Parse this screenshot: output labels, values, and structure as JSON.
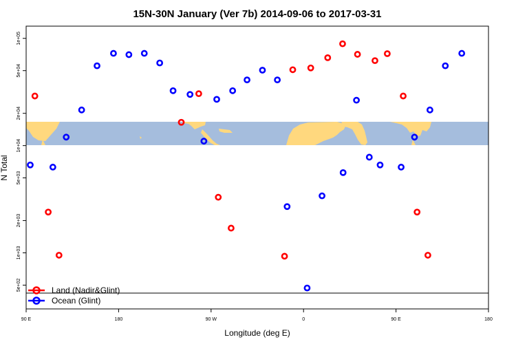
{
  "chart_data": {
    "type": "scatter",
    "title": "15N-30N January (Ver 7b)   2014-09-06 to 2017-03-31",
    "xlabel": "Longitude (deg E)",
    "ylabel": "N Total",
    "x_tick_labels": [
      "90 E",
      "180",
      "90 W",
      "0",
      "90 E",
      "180"
    ],
    "x_tick_values": [
      90,
      180,
      270,
      360,
      450,
      540
    ],
    "xlim": [
      90,
      540
    ],
    "y_scale": "log",
    "ylim": [
      300,
      130000
    ],
    "y_tick_labels": [
      "5e+02",
      "1e+03",
      "2e+03",
      "5e+03",
      "1e+04",
      "2e+04",
      "5e+04",
      "1e+05"
    ],
    "y_tick_values": [
      500,
      1000,
      2000,
      5000,
      10000,
      20000,
      50000,
      100000
    ],
    "map_band_latitudes": "15N-30N",
    "legend_position": "bottom-left",
    "series": [
      {
        "name": "Land (Nadir&Glint)",
        "color": "#ff0000",
        "points": [
          {
            "x": 98.5,
            "y": 29000
          },
          {
            "x": 111.5,
            "y": 2400
          },
          {
            "x": 122.0,
            "y": 950
          },
          {
            "x": 241.0,
            "y": 16500
          },
          {
            "x": 258.0,
            "y": 30500
          },
          {
            "x": 277.0,
            "y": 3300
          },
          {
            "x": 289.5,
            "y": 1700
          },
          {
            "x": 341.5,
            "y": 930
          },
          {
            "x": 349.5,
            "y": 51000
          },
          {
            "x": 367.0,
            "y": 53000
          },
          {
            "x": 383.5,
            "y": 66000
          },
          {
            "x": 398.0,
            "y": 89000
          },
          {
            "x": 412.5,
            "y": 71000
          },
          {
            "x": 429.5,
            "y": 62000
          },
          {
            "x": 441.5,
            "y": 72000
          },
          {
            "x": 457.0,
            "y": 29000
          },
          {
            "x": 470.5,
            "y": 2400
          },
          {
            "x": 481.0,
            "y": 950
          }
        ]
      },
      {
        "name": "Ocean (Glint)",
        "color": "#0000ff",
        "points": [
          {
            "x": 94.0,
            "y": 6600
          },
          {
            "x": 116.0,
            "y": 6300
          },
          {
            "x": 129.0,
            "y": 12000
          },
          {
            "x": 144.0,
            "y": 21500
          },
          {
            "x": 159.0,
            "y": 55500
          },
          {
            "x": 175.0,
            "y": 72500
          },
          {
            "x": 190.0,
            "y": 70500
          },
          {
            "x": 205.0,
            "y": 72500
          },
          {
            "x": 220.0,
            "y": 59000
          },
          {
            "x": 233.0,
            "y": 32500
          },
          {
            "x": 249.5,
            "y": 30000
          },
          {
            "x": 263.0,
            "y": 11000
          },
          {
            "x": 275.5,
            "y": 27000
          },
          {
            "x": 291.0,
            "y": 32500
          },
          {
            "x": 305.0,
            "y": 41000
          },
          {
            "x": 320.0,
            "y": 50500
          },
          {
            "x": 334.5,
            "y": 41000
          },
          {
            "x": 344.0,
            "y": 2700
          },
          {
            "x": 363.5,
            "y": 470
          },
          {
            "x": 378.0,
            "y": 3400
          },
          {
            "x": 398.5,
            "y": 5600
          },
          {
            "x": 411.5,
            "y": 26500
          },
          {
            "x": 424.0,
            "y": 7800
          },
          {
            "x": 434.5,
            "y": 6600
          },
          {
            "x": 455.0,
            "y": 6300
          },
          {
            "x": 468.0,
            "y": 12000
          },
          {
            "x": 483.0,
            "y": 21500
          },
          {
            "x": 498.0,
            "y": 55500
          },
          {
            "x": 514.0,
            "y": 72500
          }
        ]
      }
    ]
  }
}
